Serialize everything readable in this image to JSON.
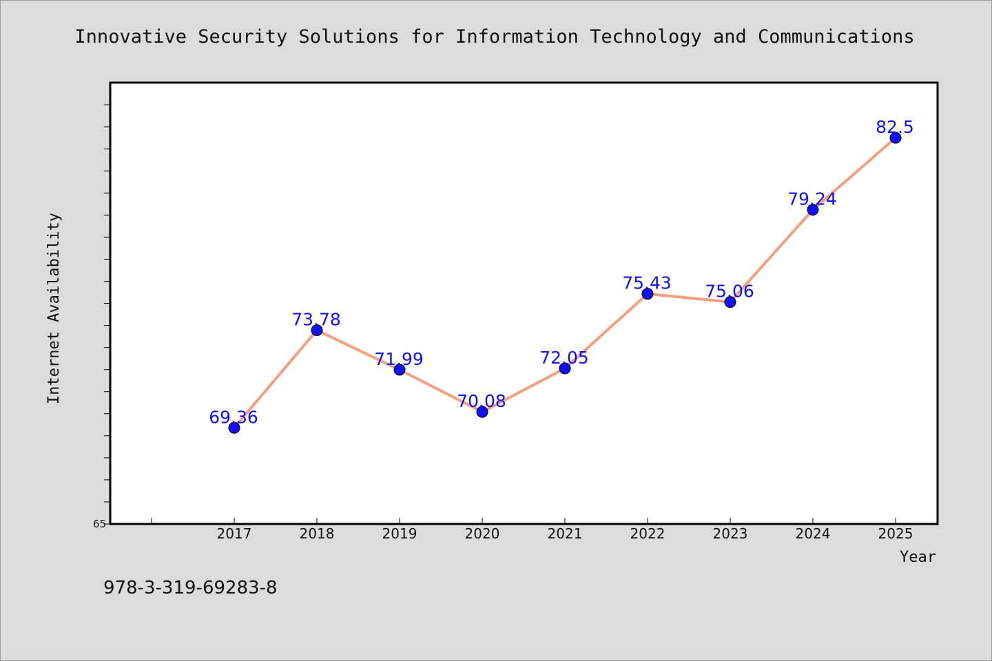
{
  "colors": {
    "background": "#dcdcdc",
    "plot_background": "#ffffff",
    "line": "#f4a07e",
    "marker": "#1010f0",
    "label": "#1010f0"
  },
  "footer": "978-3-319-69283-8",
  "chart_data": {
    "type": "line",
    "title": "Innovative Security Solutions for Information Technology and Communications",
    "xlabel": "Year",
    "ylabel": "Internet Availability",
    "categories": [
      "2017",
      "2018",
      "2019",
      "2020",
      "2021",
      "2022",
      "2023",
      "2024",
      "2025"
    ],
    "series": [
      {
        "values": [
          69.36,
          73.78,
          71.99,
          70.08,
          72.05,
          75.43,
          75.06,
          79.24,
          82.5
        ],
        "labels": [
          "69.36",
          "73.78",
          "71.99",
          "70.08",
          "72.05",
          "75.43",
          "75.06",
          "79.24",
          "82.5"
        ]
      }
    ],
    "ylim": [
      65,
      85
    ],
    "yticks_labeled": [
      "65"
    ],
    "minor_tick_step": 1,
    "grid": false,
    "legend": "none"
  }
}
